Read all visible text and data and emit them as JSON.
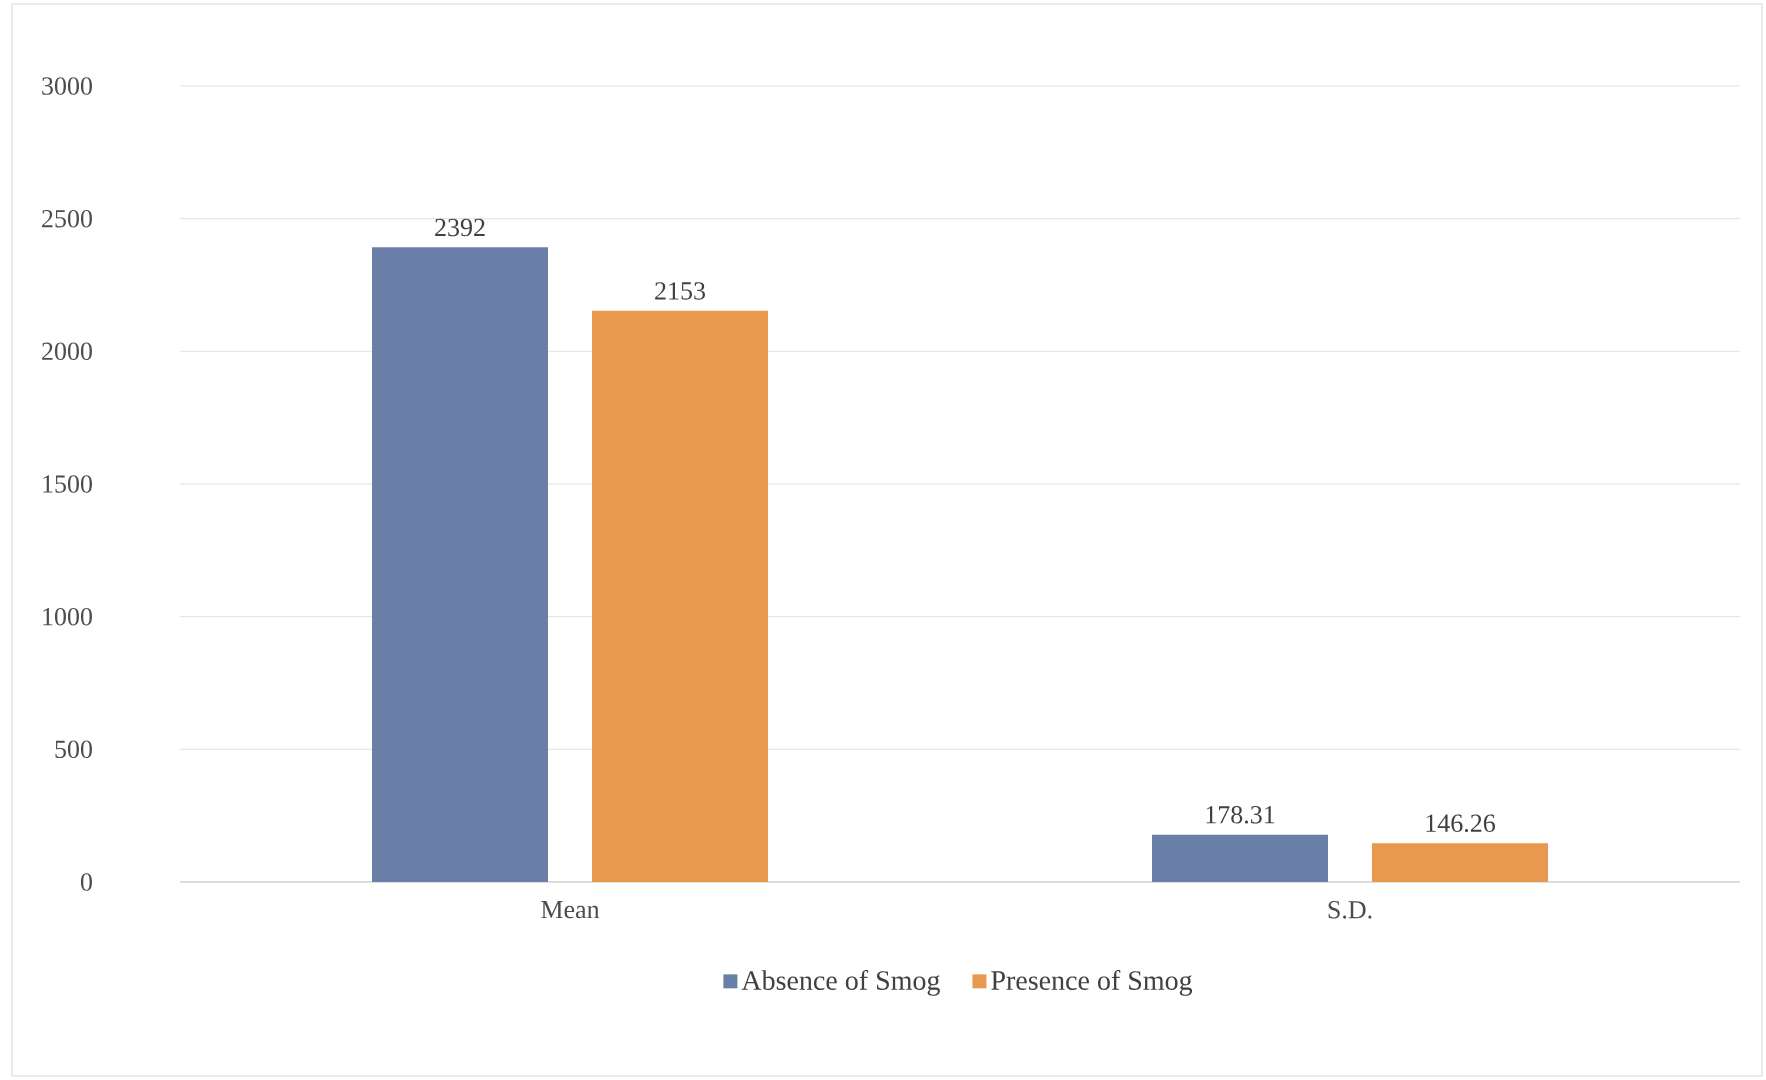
{
  "chart_data": {
    "type": "bar",
    "categories": [
      "Mean",
      "S.D."
    ],
    "series": [
      {
        "name": "Absence of Smog",
        "color": "#6a7fa8",
        "values": [
          2392,
          178.31
        ],
        "value_labels": [
          "2392",
          "178.31"
        ]
      },
      {
        "name": "Presence of Smog",
        "color": "#e8994f",
        "values": [
          2153,
          146.26
        ],
        "value_labels": [
          "2153",
          "146.26"
        ]
      }
    ],
    "ylim": [
      0,
      3000
    ],
    "yticks": [
      0,
      500,
      1000,
      1500,
      2000,
      2500,
      3000
    ],
    "grid": "y",
    "legend": "bottom"
  }
}
